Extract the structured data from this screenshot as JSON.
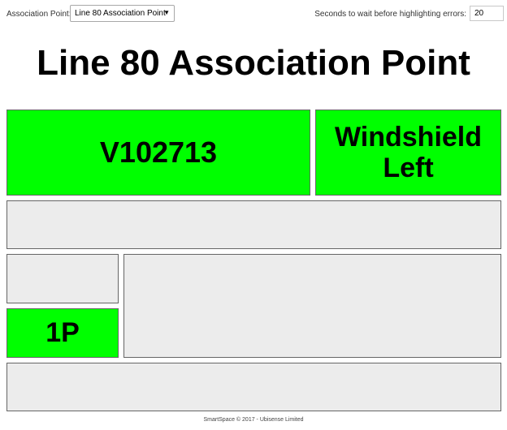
{
  "topbar": {
    "association_label": "Association Point:",
    "association_value": "Line 80 Association Point",
    "seconds_label": "Seconds to wait before highlighting errors:",
    "seconds_value": "20"
  },
  "main": {
    "title": "Line 80 Association Point",
    "vin": "V102713",
    "part_line1": "Windshield",
    "part_line2": "Left",
    "code": "1P"
  },
  "colors": {
    "ok": "#00ff00",
    "empty": "#ececec"
  },
  "footer": {
    "text": "SmartSpace © 2017 - Ubisense Limited"
  }
}
